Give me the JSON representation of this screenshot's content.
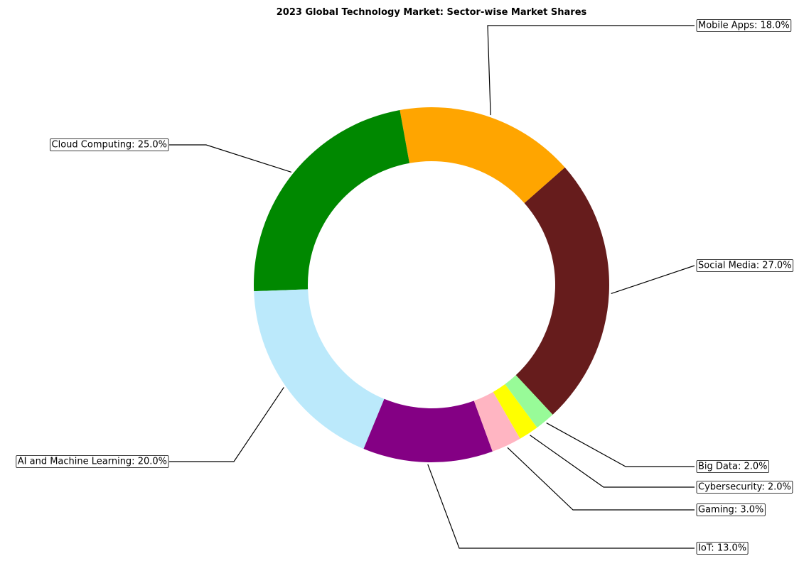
{
  "chart_data": {
    "type": "pie",
    "donut": true,
    "title": "2023 Global Technology Market: Sector-wise Market Shares",
    "legend": "none",
    "slices": [
      {
        "label": "Social Media",
        "value": 27.0,
        "display": "Social Media: 27.0%",
        "color": "#661c1c"
      },
      {
        "label": "Mobile Apps",
        "value": 18.0,
        "display": "Mobile Apps: 18.0%",
        "color": "#ffa500"
      },
      {
        "label": "Cloud Computing",
        "value": 25.0,
        "display": "Cloud Computing: 25.0%",
        "color": "#008800"
      },
      {
        "label": "AI and Machine Learning",
        "value": 20.0,
        "display": "AI and Machine Learning: 20.0%",
        "color": "#bbe9fb"
      },
      {
        "label": "IoT",
        "value": 13.0,
        "display": "IoT: 13.0%",
        "color": "#840084"
      },
      {
        "label": "Gaming",
        "value": 3.0,
        "display": "Gaming: 3.0%",
        "color": "#ffb5c2"
      },
      {
        "label": "Cybersecurity",
        "value": 2.0,
        "display": "Cybersecurity: 2.0%",
        "color": "#ffff00"
      },
      {
        "label": "Big Data",
        "value": 2.0,
        "display": "Big Data: 2.0%",
        "color": "#98fb98"
      }
    ]
  }
}
